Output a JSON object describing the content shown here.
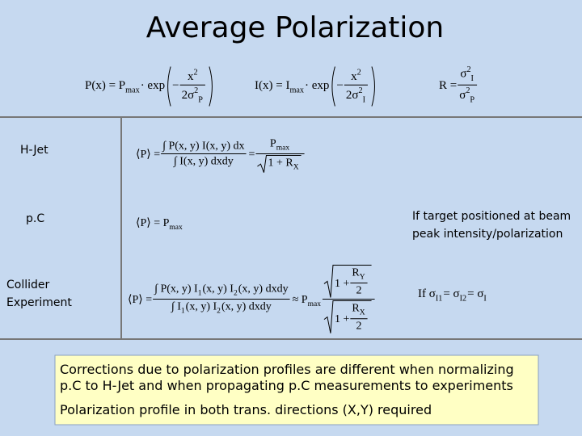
{
  "title": "Average Polarization",
  "top_formulas": [
    [
      "P(x) = P",
      {
        "sub": "max"
      },
      " · exp",
      {
        "paren": [
          "− ",
          {
            "num": [
              "x",
              {
                "sup": "2"
              }
            ],
            "den": [
              "2σ",
              {
                "sup": "2"
              },
              {
                "sub": "P"
              }
            ]
          }
        ]
      }
    ],
    [
      "I(x) = I",
      {
        "sub": "max"
      },
      " · exp",
      {
        "paren": [
          "− ",
          {
            "num": [
              "x",
              {
                "sup": "2"
              }
            ],
            "den": [
              "2σ",
              {
                "sup": "2"
              },
              {
                "sub": "I"
              }
            ]
          }
        ]
      }
    ],
    [
      "R = ",
      {
        "num": [
          "σ",
          {
            "sup": "2"
          },
          {
            "sub": "I"
          }
        ],
        "den": [
          "σ",
          {
            "sup": "2"
          },
          {
            "sub": "P"
          }
        ]
      }
    ]
  ],
  "rows": [
    {
      "label": [
        "H-Jet"
      ],
      "formula": [
        "⟨P⟩ = ",
        {
          "num": "∫ P(x, y) I(x, y) dx",
          "den": "∫ I(x, y) dxdy"
        },
        " = ",
        {
          "num": [
            "P",
            {
              "sub": "max"
            }
          ],
          "den": {
            "sqrt": [
              "1 + R",
              {
                "sub": "X"
              }
            ]
          }
        }
      ]
    },
    {
      "label": [
        "p.C"
      ],
      "formula": [
        "⟨P⟩ = P",
        {
          "sub": "max"
        }
      ],
      "note": [
        "If target positioned at beam",
        "peak intensity/polarization"
      ]
    },
    {
      "label": [
        "Collider",
        "Experiment"
      ],
      "formula": [
        "⟨P⟩ = ",
        {
          "num": [
            "∫ P(x, y) I",
            {
              "sub": "1"
            },
            "(x, y) I",
            {
              "sub": "2"
            },
            "(x, y) dxdy"
          ],
          "den": [
            "∫ I",
            {
              "sub": "1"
            },
            "(x, y) I",
            {
              "sub": "2"
            },
            "(x, y) dxdy"
          ]
        },
        " ≈ P",
        {
          "sub": "max"
        },
        " ",
        {
          "num": {
            "sqrt": [
              "1 + ",
              {
                "num": [
                  "R",
                  {
                    "sub": "Y"
                  }
                ],
                "den": "2"
              }
            ]
          },
          "den": {
            "sqrt": [
              "1 + ",
              {
                "num": [
                  "R",
                  {
                    "sub": "X"
                  }
                ],
                "den": "2"
              }
            ]
          }
        }
      ],
      "note_formula": [
        "If σ",
        {
          "sub": "I1"
        },
        "= σ",
        {
          "sub": "I2"
        },
        "= σ",
        {
          "sub": "I"
        }
      ]
    }
  ],
  "box": [
    "Corrections due to polarization profiles are different when normalizing",
    "p.C to H-Jet and when propagating p.C measurements to experiments",
    "Polarization profile in both trans. directions (X,Y) required"
  ]
}
